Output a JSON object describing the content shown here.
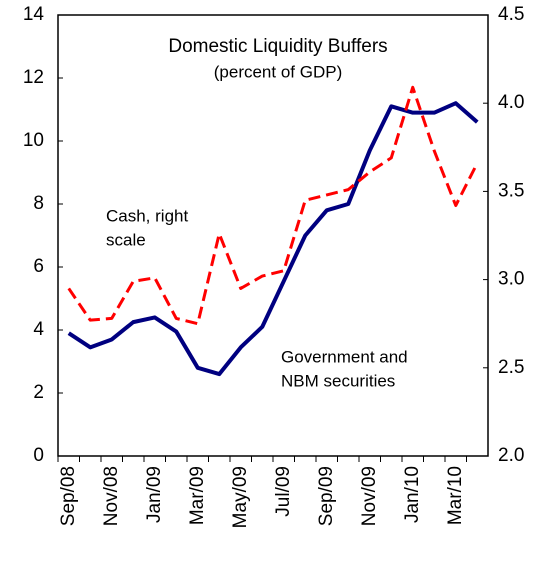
{
  "chart_data": {
    "type": "line",
    "title": "Domestic Liquidity Buffers",
    "subtitle": "(percent of GDP)",
    "annotations": [
      "Cash, right",
      "scale",
      "Government and",
      "NBM securities"
    ],
    "categories": [
      "Sep/08",
      null,
      "Nov/08",
      null,
      "Jan/09",
      null,
      "Mar/09",
      null,
      "May/09",
      null,
      "Jul/09",
      null,
      "Sep/09",
      null,
      "Nov/09",
      null,
      "Jan/10",
      null,
      "Mar/10",
      null
    ],
    "series": [
      {
        "name": "Government and NBM securities",
        "color": "#000080",
        "axis": "y",
        "values": [
          3.9,
          3.45,
          3.7,
          4.25,
          4.4,
          3.95,
          2.8,
          2.6,
          3.45,
          4.1,
          5.55,
          7.0,
          7.8,
          8.0,
          9.7,
          11.1,
          10.9,
          10.9,
          11.2,
          10.6
        ]
      },
      {
        "name": "Cash, right scale",
        "color": "#ff0000",
        "axis": "y2",
        "dashed": true,
        "values": [
          2.95,
          2.77,
          2.78,
          2.99,
          3.01,
          2.78,
          2.75,
          3.26,
          2.95,
          3.02,
          3.05,
          3.45,
          3.48,
          3.51,
          3.61,
          3.69,
          4.09,
          3.73,
          3.42,
          3.66
        ]
      }
    ],
    "ylim": [
      0,
      14
    ],
    "yticks": [
      0,
      2,
      4,
      6,
      8,
      10,
      12,
      14
    ],
    "y2lim": [
      2.0,
      4.5
    ],
    "y2ticks": [
      {
        "value": 2.0,
        "label": "2.0"
      },
      2.5,
      {
        "value": 3.0,
        "label": "3.0"
      },
      3.5,
      {
        "value": 4.0,
        "label": "4.0"
      },
      4.5
    ],
    "grid": false
  }
}
